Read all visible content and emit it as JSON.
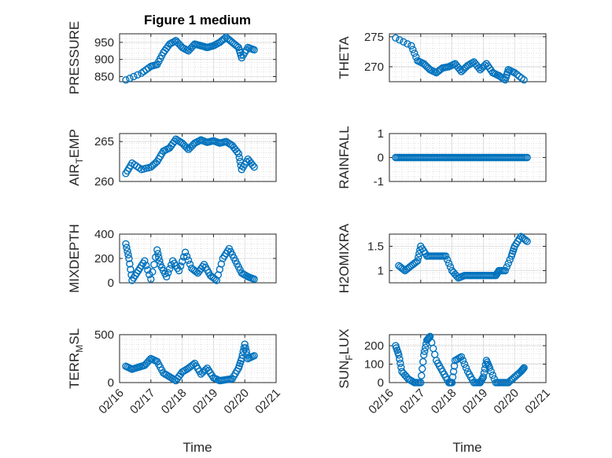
{
  "chart_data": {
    "type": "scatter",
    "title": "Figure 1 medium",
    "marker_color": "#0072bd",
    "xlim": [
      0,
      5
    ],
    "x_ticks": [
      0,
      1,
      2,
      3,
      4,
      5
    ],
    "x_tick_labels": [
      "02/16",
      "02/17",
      "02/18",
      "02/19",
      "02/20",
      "02/21"
    ],
    "xlabel": "Time",
    "panels": [
      {
        "name": "PRESSURE",
        "ylabel": "PRESSURE",
        "ylim": [
          835,
          975
        ],
        "yticks": [
          850,
          900,
          950
        ],
        "ytick_labels": [
          "850",
          "900",
          "950"
        ],
        "series": {
          "x": [
            0.2,
            0.7,
            1.0,
            1.2,
            1.4,
            1.6,
            1.8,
            2.0,
            2.2,
            2.4,
            2.6,
            2.8,
            3.0,
            3.2,
            3.4,
            3.6,
            3.8,
            3.9,
            4.1,
            4.3
          ],
          "y": [
            840,
            860,
            880,
            885,
            920,
            945,
            955,
            935,
            925,
            945,
            940,
            935,
            940,
            950,
            965,
            950,
            935,
            905,
            935,
            928
          ]
        }
      },
      {
        "name": "THETA",
        "ylabel": "THETA",
        "ylim": [
          267.5,
          275.5
        ],
        "yticks": [
          270,
          275
        ],
        "ytick_labels": [
          "270",
          "275"
        ],
        "series": {
          "x": [
            0.2,
            0.7,
            0.9,
            1.1,
            1.3,
            1.5,
            1.7,
            1.9,
            2.1,
            2.3,
            2.5,
            2.7,
            2.9,
            3.1,
            3.3,
            3.5,
            3.7,
            3.8,
            4.0,
            4.3
          ],
          "y": [
            274.8,
            273.5,
            271.0,
            270.5,
            269.5,
            269.0,
            269.8,
            270.0,
            270.5,
            269.2,
            270.2,
            270.8,
            269.5,
            270.5,
            269.0,
            268.5,
            267.8,
            269.5,
            269.0,
            267.8
          ]
        }
      },
      {
        "name": "AIR_TEMP",
        "ylabel": "AIR_TEMP",
        "ylim": [
          260,
          266
        ],
        "yticks": [
          260,
          265
        ],
        "ytick_labels": [
          "260",
          "265"
        ],
        "series": {
          "x": [
            0.2,
            0.4,
            0.7,
            1.0,
            1.2,
            1.4,
            1.6,
            1.8,
            2.0,
            2.2,
            2.4,
            2.6,
            2.8,
            3.0,
            3.2,
            3.4,
            3.6,
            3.8,
            3.9,
            4.1,
            4.3
          ],
          "y": [
            261.0,
            262.3,
            261.5,
            261.8,
            262.5,
            263.8,
            264.2,
            265.3,
            264.8,
            264.0,
            264.8,
            265.2,
            264.9,
            265.1,
            264.8,
            265.0,
            264.5,
            263.5,
            261.5,
            262.8,
            261.8
          ]
        }
      },
      {
        "name": "RAINFALL",
        "ylabel": "RAINFALL",
        "ylim": [
          -1,
          1
        ],
        "yticks": [
          -1,
          0,
          1
        ],
        "ytick_labels": [
          "-1",
          "0",
          "1"
        ],
        "series": {
          "x": [
            0.2,
            0.4,
            0.6,
            0.8,
            1.0,
            1.2,
            1.4,
            1.6,
            1.8,
            2.0,
            2.2,
            2.4,
            2.6,
            2.8,
            3.0,
            3.2,
            3.4,
            3.6,
            3.8,
            4.0,
            4.2,
            4.4
          ],
          "y": [
            0,
            0,
            0,
            0,
            0,
            0,
            0,
            0,
            0,
            0,
            0,
            0,
            0,
            0,
            0,
            0,
            0,
            0,
            0,
            0,
            0,
            0
          ]
        }
      },
      {
        "name": "MIXDEPTH",
        "ylabel": "MIXDEPTH",
        "ylim": [
          0,
          400
        ],
        "yticks": [
          0,
          200,
          400
        ],
        "ytick_labels": [
          "0",
          "200",
          "400"
        ],
        "series": {
          "x": [
            0.2,
            0.3,
            0.4,
            0.6,
            0.8,
            1.0,
            1.2,
            1.3,
            1.5,
            1.7,
            1.9,
            2.1,
            2.3,
            2.5,
            2.7,
            2.9,
            3.1,
            3.3,
            3.5,
            3.7,
            3.9,
            4.1,
            4.3
          ],
          "y": [
            320,
            200,
            20,
            100,
            180,
            30,
            270,
            150,
            50,
            180,
            100,
            250,
            120,
            80,
            150,
            60,
            20,
            200,
            280,
            180,
            80,
            50,
            30
          ]
        }
      },
      {
        "name": "H2OMIXRA",
        "ylabel": "H2OMIXRA",
        "ylim": [
          0.75,
          1.75
        ],
        "yticks": [
          1,
          1.5
        ],
        "ytick_labels": [
          "1",
          "1.5"
        ],
        "series": {
          "x": [
            0.3,
            0.5,
            0.7,
            0.9,
            1.0,
            1.2,
            1.4,
            1.6,
            1.8,
            2.0,
            2.2,
            2.4,
            2.6,
            2.8,
            3.0,
            3.2,
            3.4,
            3.5,
            3.7,
            3.9,
            4.0,
            4.2,
            4.4
          ],
          "y": [
            1.1,
            1.0,
            1.1,
            1.2,
            1.5,
            1.3,
            1.3,
            1.3,
            1.3,
            1.0,
            0.85,
            0.9,
            0.9,
            0.9,
            0.9,
            0.9,
            0.9,
            1.0,
            1.0,
            1.3,
            1.5,
            1.7,
            1.6
          ]
        }
      },
      {
        "name": "TERR_MSL",
        "ylabel": "TERR_MSL",
        "ylim": [
          0,
          500
        ],
        "yticks": [
          0,
          500
        ],
        "ytick_labels": [
          "0",
          "500"
        ],
        "series": {
          "x": [
            0.2,
            0.4,
            0.6,
            0.8,
            1.0,
            1.2,
            1.4,
            1.6,
            1.8,
            2.0,
            2.2,
            2.4,
            2.6,
            2.8,
            3.0,
            3.2,
            3.4,
            3.6,
            3.8,
            3.9,
            4.0,
            4.1,
            4.3
          ],
          "y": [
            170,
            140,
            160,
            180,
            250,
            220,
            100,
            60,
            20,
            110,
            150,
            200,
            90,
            150,
            50,
            20,
            30,
            40,
            150,
            250,
            400,
            250,
            280
          ]
        }
      },
      {
        "name": "SUN_FLUX",
        "ylabel": "SUN_FLUX",
        "ylim": [
          0,
          260
        ],
        "yticks": [
          0,
          100,
          200
        ],
        "ytick_labels": [
          "0",
          "100",
          "200"
        ],
        "series": {
          "x": [
            0.2,
            0.3,
            0.4,
            0.6,
            0.8,
            1.0,
            1.1,
            1.2,
            1.3,
            1.5,
            1.7,
            1.9,
            2.0,
            2.1,
            2.3,
            2.5,
            2.7,
            2.9,
            3.0,
            3.1,
            3.2,
            3.4,
            3.6,
            3.8,
            4.0,
            4.2,
            4.3
          ],
          "y": [
            200,
            150,
            60,
            20,
            0,
            0,
            150,
            230,
            250,
            120,
            60,
            0,
            0,
            120,
            140,
            60,
            0,
            0,
            30,
            120,
            80,
            0,
            0,
            0,
            30,
            60,
            80
          ]
        }
      }
    ]
  }
}
